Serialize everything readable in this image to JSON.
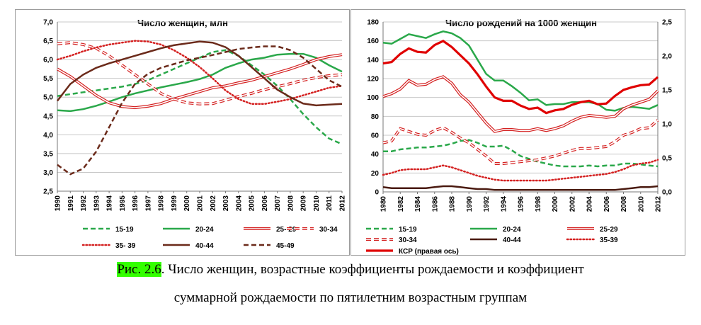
{
  "chart_data": [
    {
      "type": "line",
      "title": "Число женщин, млн",
      "xlabel": "",
      "ylabel": "",
      "x": [
        1990,
        1991,
        1992,
        1993,
        1994,
        1995,
        1996,
        1997,
        1998,
        1999,
        2000,
        2001,
        2002,
        2003,
        2004,
        2005,
        2006,
        2007,
        2008,
        2009,
        2010,
        2011,
        2012
      ],
      "x_tick_labels": [
        "1990",
        "1991",
        "1992",
        "1993",
        "1994",
        "1995",
        "1996",
        "1997",
        "1998",
        "1999",
        "2000",
        "2001",
        "2002",
        "2003",
        "2004",
        "2005",
        "2006",
        "2007",
        "2008",
        "2009",
        "2010",
        "2011",
        "2012"
      ],
      "ylim": [
        2.5,
        7.0
      ],
      "y_ticks": [
        "2,5",
        "3,0",
        "3,5",
        "4,0",
        "4,5",
        "5,0",
        "5,5",
        "6,0",
        "6,5",
        "7,0"
      ],
      "legend_position": "bottom",
      "series": [
        {
          "name": "15-19",
          "color": "#2aa84a",
          "style": "dashed",
          "values": [
            5.03,
            5.08,
            5.13,
            5.18,
            5.23,
            5.28,
            5.35,
            5.45,
            5.6,
            5.75,
            5.9,
            6.05,
            6.2,
            6.25,
            6.1,
            5.85,
            5.6,
            5.3,
            4.95,
            4.55,
            4.2,
            3.9,
            3.75
          ]
        },
        {
          "name": "20-24",
          "color": "#2aa84a",
          "style": "solid",
          "values": [
            4.65,
            4.63,
            4.68,
            4.77,
            4.88,
            5.0,
            5.1,
            5.18,
            5.26,
            5.33,
            5.4,
            5.48,
            5.6,
            5.78,
            5.9,
            6.0,
            6.05,
            6.13,
            6.15,
            6.15,
            6.05,
            5.85,
            5.68
          ]
        },
        {
          "name": "25- 29",
          "color": "#d42020",
          "style": "double",
          "values": [
            5.75,
            5.55,
            5.3,
            5.05,
            4.85,
            4.75,
            4.72,
            4.76,
            4.83,
            4.95,
            5.05,
            5.15,
            5.25,
            5.3,
            5.38,
            5.45,
            5.55,
            5.65,
            5.75,
            5.87,
            6.0,
            6.08,
            6.13
          ]
        },
        {
          "name": "30-34",
          "color": "#d42020",
          "style": "double-dashed",
          "values": [
            6.42,
            6.45,
            6.4,
            6.3,
            6.1,
            5.85,
            5.6,
            5.35,
            5.1,
            4.95,
            4.85,
            4.82,
            4.83,
            4.92,
            5.02,
            5.1,
            5.2,
            5.28,
            5.36,
            5.45,
            5.52,
            5.57,
            5.6
          ]
        },
        {
          "name": "35- 39",
          "color": "#d42020",
          "style": "dotted",
          "values": [
            6.0,
            6.1,
            6.22,
            6.32,
            6.4,
            6.45,
            6.5,
            6.48,
            6.4,
            6.25,
            6.05,
            5.8,
            5.5,
            5.18,
            4.95,
            4.82,
            4.82,
            4.88,
            4.95,
            5.05,
            5.15,
            5.25,
            5.3
          ]
        },
        {
          "name": "40-44",
          "color": "#6b2a1a",
          "style": "solid",
          "values": [
            4.9,
            5.35,
            5.6,
            5.78,
            5.9,
            6.0,
            6.1,
            6.2,
            6.3,
            6.38,
            6.43,
            6.48,
            6.45,
            6.33,
            6.1,
            5.8,
            5.5,
            5.2,
            5.0,
            4.83,
            4.78,
            4.8,
            4.82
          ]
        },
        {
          "name": "45-49",
          "color": "#6b2a1a",
          "style": "dashed",
          "values": [
            3.2,
            2.95,
            3.1,
            3.55,
            4.2,
            4.85,
            5.35,
            5.62,
            5.78,
            5.88,
            5.98,
            6.05,
            6.12,
            6.2,
            6.28,
            6.32,
            6.35,
            6.35,
            6.25,
            6.05,
            5.75,
            5.45,
            5.28
          ]
        }
      ]
    },
    {
      "type": "line",
      "title": "Число рождений на 1000 женщин",
      "xlabel": "",
      "ylabel": "",
      "x": [
        1980,
        1981,
        1982,
        1983,
        1984,
        1985,
        1986,
        1987,
        1988,
        1989,
        1990,
        1991,
        1992,
        1993,
        1994,
        1995,
        1996,
        1997,
        1998,
        1999,
        2000,
        2001,
        2002,
        2003,
        2004,
        2005,
        2006,
        2007,
        2008,
        2009,
        2010,
        2011,
        2012
      ],
      "x_tick_labels": [
        "1980",
        "1982",
        "1984",
        "1986",
        "1988",
        "1990",
        "1992",
        "1994",
        "1996",
        "1998",
        "2000",
        "2002",
        "2004",
        "2006",
        "2008",
        "2010",
        "2012"
      ],
      "ylim": [
        0,
        180
      ],
      "y_ticks": [
        "0",
        "20",
        "40",
        "60",
        "80",
        "100",
        "120",
        "140",
        "160",
        "180"
      ],
      "y2lim": [
        0,
        2.5
      ],
      "y2_ticks": [
        "0,0",
        "0,5",
        "1,0",
        "1,5",
        "2,0",
        "2,5"
      ],
      "legend_position": "bottom",
      "series": [
        {
          "name": "15-19",
          "color": "#2aa84a",
          "style": "dashed",
          "values": [
            43,
            43,
            45,
            46,
            47,
            47,
            48,
            49,
            51,
            54,
            55,
            52,
            48,
            48,
            49,
            44,
            38,
            35,
            32,
            30,
            28,
            27,
            27,
            27,
            28,
            27,
            28,
            28,
            30,
            30,
            29,
            28,
            27
          ]
        },
        {
          "name": "20-24",
          "color": "#2aa84a",
          "style": "solid",
          "values": [
            158,
            157,
            162,
            167,
            165,
            163,
            167,
            170,
            168,
            163,
            155,
            140,
            125,
            118,
            118,
            112,
            105,
            97,
            98,
            92,
            93,
            93,
            95,
            95,
            95,
            93,
            87,
            86,
            89,
            90,
            89,
            88,
            92
          ]
        },
        {
          "name": "25-29",
          "color": "#d42020",
          "style": "double",
          "values": [
            101,
            104,
            109,
            118,
            113,
            114,
            119,
            122,
            115,
            103,
            95,
            84,
            73,
            64,
            66,
            66,
            65,
            65,
            67,
            65,
            67,
            70,
            75,
            79,
            81,
            80,
            79,
            80,
            88,
            92,
            95,
            98,
            107
          ]
        },
        {
          "name": "30-34",
          "color": "#d42020",
          "style": "double-dashed",
          "values": [
            52,
            54,
            67,
            64,
            61,
            60,
            65,
            68,
            63,
            57,
            52,
            45,
            38,
            30,
            30,
            31,
            32,
            33,
            34,
            36,
            38,
            41,
            44,
            46,
            46,
            47,
            48,
            53,
            60,
            63,
            67,
            68,
            76
          ]
        },
        {
          "name": "35-39",
          "color": "#d42020",
          "style": "dotted",
          "values": [
            18,
            20,
            23,
            24,
            24,
            24,
            26,
            28,
            26,
            23,
            20,
            17,
            15,
            13,
            12,
            12,
            12,
            12,
            12,
            12,
            13,
            14,
            15,
            16,
            17,
            18,
            19,
            21,
            24,
            28,
            30,
            31,
            34
          ]
        },
        {
          "name": "40-44",
          "color": "#4a1a10",
          "style": "solid",
          "values": [
            5,
            4,
            4,
            4,
            4,
            4,
            5,
            6,
            6,
            5,
            4,
            3,
            3,
            2,
            2,
            2,
            2,
            2,
            2,
            2,
            2,
            2,
            2,
            2,
            2,
            2,
            2,
            2,
            3,
            4,
            5,
            5,
            6
          ]
        },
        {
          "name": "КСР (правая  ось)",
          "color": "#e00000",
          "style": "thick",
          "axis": "right",
          "values": [
            1.89,
            1.91,
            2.03,
            2.11,
            2.06,
            2.05,
            2.16,
            2.22,
            2.13,
            2.01,
            1.89,
            1.73,
            1.55,
            1.39,
            1.34,
            1.34,
            1.27,
            1.22,
            1.24,
            1.16,
            1.2,
            1.22,
            1.28,
            1.32,
            1.34,
            1.29,
            1.3,
            1.41,
            1.5,
            1.54,
            1.57,
            1.58,
            1.69
          ]
        }
      ]
    }
  ],
  "caption": {
    "label": "Рис. 2.6",
    "line1_rest": ". Число женщин, возрастные коэффициенты рождаемости и коэффициент",
    "line2": "суммарной рождаемости по пятилетним возрастным группам"
  }
}
